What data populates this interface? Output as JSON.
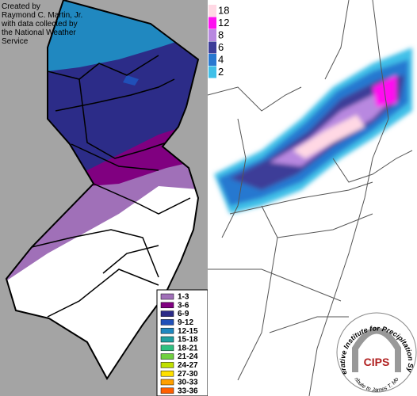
{
  "credit": [
    "Created by",
    "Raymond C. Martin, Jr.",
    "with data collected by",
    "the National Weather",
    "Service"
  ],
  "nj_legend": [
    {
      "label": "1-3",
      "color": "#a070b8"
    },
    {
      "label": "3-6",
      "color": "#800080"
    },
    {
      "label": "6-9",
      "color": "#2c2c88"
    },
    {
      "label": "9-12",
      "color": "#2050b8"
    },
    {
      "label": "12-15",
      "color": "#2088c0"
    },
    {
      "label": "15-18",
      "color": "#20a0a0"
    },
    {
      "label": "18-21",
      "color": "#30c080"
    },
    {
      "label": "21-24",
      "color": "#70d040"
    },
    {
      "label": "24-27",
      "color": "#c0e000"
    },
    {
      "label": "27-30",
      "color": "#ffe000"
    },
    {
      "label": "30-33",
      "color": "#ffa000"
    },
    {
      "label": "33-36",
      "color": "#ff6000"
    }
  ],
  "region_legend": [
    {
      "label": "18",
      "color": "#ffd8e4"
    },
    {
      "label": "12",
      "color": "#ff10f0"
    },
    {
      "label": "8",
      "color": "#b888e0"
    },
    {
      "label": "6",
      "color": "#3c3c98"
    },
    {
      "label": "4",
      "color": "#2878d0"
    },
    {
      "label": "2",
      "color": "#40c0e8"
    }
  ],
  "logo": {
    "acronym": "CIPS",
    "name": "Cooperative Institute for Precipitation Systems",
    "tribute": "A Tribute to James T. Moore"
  }
}
